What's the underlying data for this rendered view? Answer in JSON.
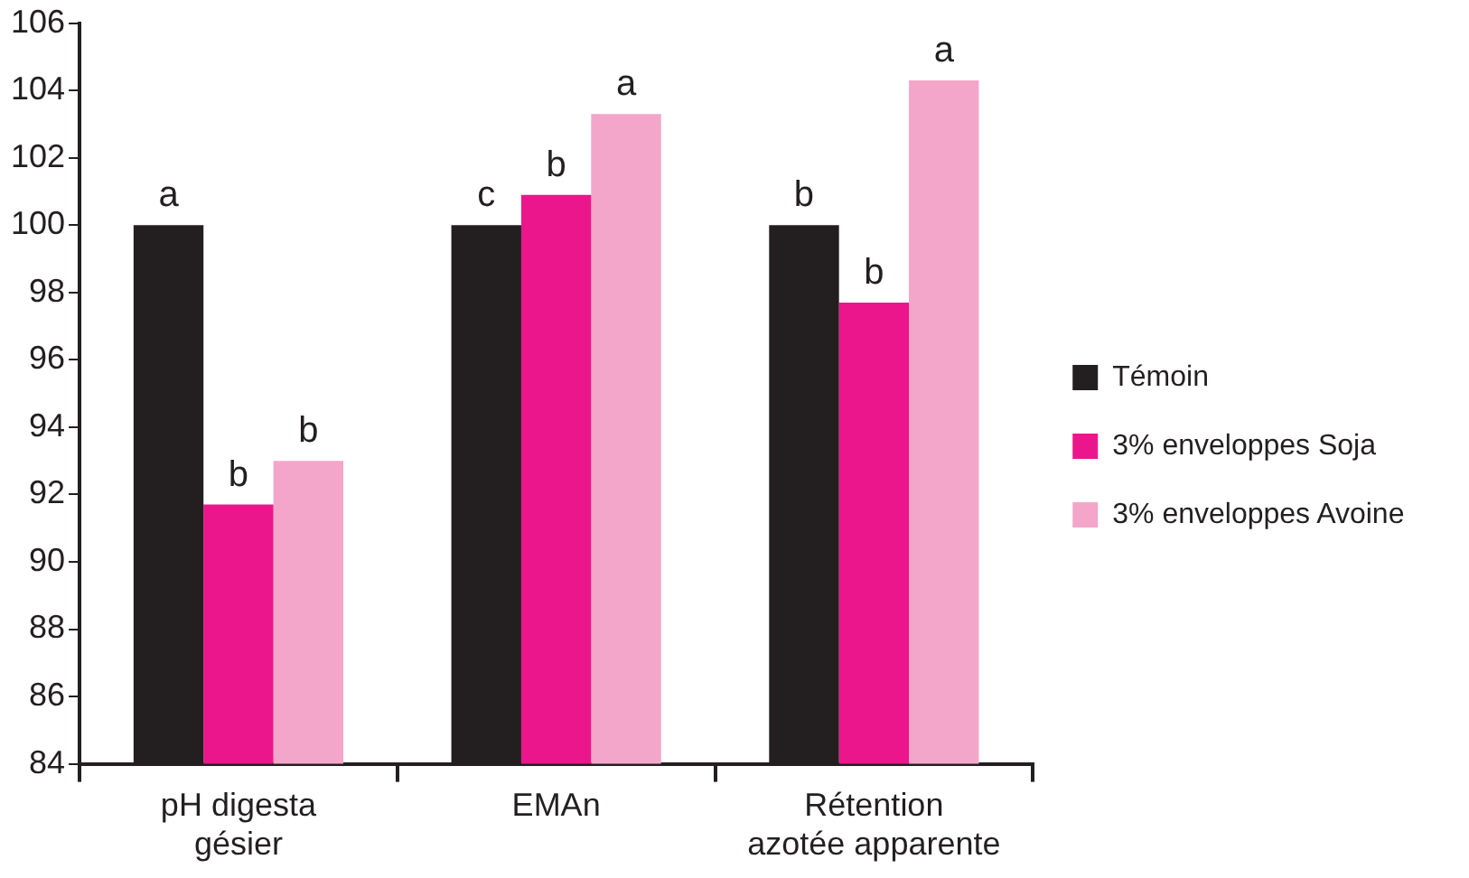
{
  "chart_data": {
    "type": "bar",
    "categories": [
      "pH digesta\ngésier",
      "EMAn",
      "Rétention\nazotée apparente"
    ],
    "series": [
      {
        "name": "Témoin",
        "color": "#231f20",
        "values": [
          100,
          100,
          100
        ],
        "value_labels": [
          "a",
          "c",
          "b"
        ]
      },
      {
        "name": "3% enveloppes Soja",
        "color": "#ec168c",
        "values": [
          91.7,
          100.9,
          97.7
        ],
        "value_labels": [
          "b",
          "b",
          "b"
        ]
      },
      {
        "name": "3% enveloppes Avoine",
        "color": "#f3a6c9",
        "values": [
          93,
          103.3,
          104.3
        ],
        "value_labels": [
          "b",
          "a",
          "a"
        ]
      }
    ],
    "ylim": [
      84,
      106
    ],
    "yticks": [
      84,
      86,
      88,
      90,
      92,
      94,
      96,
      98,
      100,
      102,
      104,
      106
    ],
    "grid": false,
    "legend": "right"
  }
}
